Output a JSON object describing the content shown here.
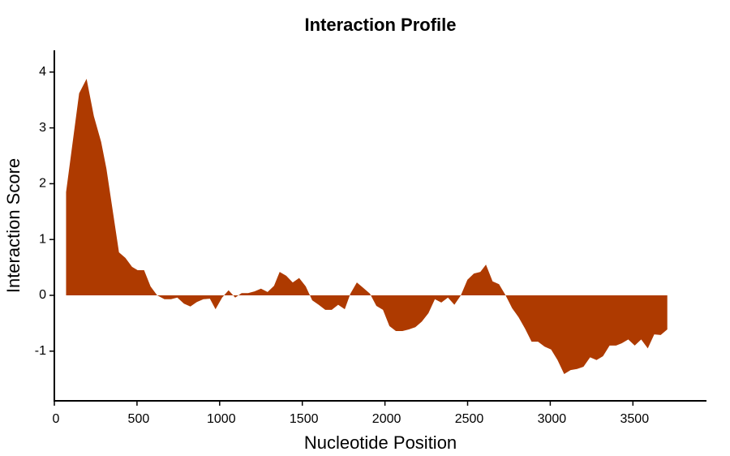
{
  "chart_data": {
    "type": "area",
    "title": "Interaction Profile",
    "x_label": "Nucleotide Position",
    "y_label": "Interaction Score",
    "color": "#ae3a00",
    "x": [
      71,
      150,
      195,
      239,
      283,
      315,
      391,
      430,
      470,
      504,
      543,
      582,
      622,
      666,
      706,
      744,
      784,
      823,
      862,
      902,
      941,
      975,
      1015,
      1054,
      1094,
      1133,
      1172,
      1211,
      1250,
      1290,
      1329,
      1363,
      1403,
      1442,
      1481,
      1521,
      1560,
      1599,
      1639,
      1678,
      1717,
      1757,
      1791,
      1830,
      1870,
      1909,
      1948,
      1988,
      2027,
      2066,
      2106,
      2145,
      2184,
      2223,
      2263,
      2302,
      2341,
      2381,
      2420,
      2459,
      2499,
      2538,
      2577,
      2611,
      2651,
      2690,
      2730,
      2769,
      2808,
      2848,
      2887,
      2926,
      2966,
      3005,
      3044,
      3084,
      3123,
      3162,
      3201,
      3241,
      3280,
      3319,
      3359,
      3398,
      3432,
      3472,
      3511,
      3550,
      3590,
      3629,
      3668,
      3708
    ],
    "values": [
      1.85,
      3.62,
      3.88,
      3.21,
      2.75,
      2.27,
      0.77,
      0.67,
      0.51,
      0.45,
      0.45,
      0.16,
      0.0,
      -0.07,
      -0.07,
      -0.04,
      -0.15,
      -0.2,
      -0.12,
      -0.07,
      -0.06,
      -0.25,
      -0.04,
      0.09,
      -0.04,
      0.04,
      0.04,
      0.07,
      0.12,
      0.06,
      0.17,
      0.42,
      0.35,
      0.23,
      0.31,
      0.16,
      -0.09,
      -0.17,
      -0.26,
      -0.26,
      -0.17,
      -0.25,
      0.03,
      0.23,
      0.13,
      0.03,
      -0.19,
      -0.26,
      -0.55,
      -0.64,
      -0.64,
      -0.61,
      -0.57,
      -0.47,
      -0.32,
      -0.07,
      -0.13,
      -0.04,
      -0.17,
      0.0,
      0.28,
      0.39,
      0.42,
      0.55,
      0.25,
      0.2,
      0.0,
      -0.23,
      -0.39,
      -0.6,
      -0.83,
      -0.83,
      -0.92,
      -0.97,
      -1.16,
      -1.41,
      -1.34,
      -1.32,
      -1.28,
      -1.11,
      -1.16,
      -1.09,
      -0.9,
      -0.9,
      -0.86,
      -0.79,
      -0.9,
      -0.79,
      -0.95,
      -0.7,
      -0.71,
      -0.61
    ],
    "xlim": [
      0,
      3945
    ],
    "ylim": [
      -1.89,
      4.39
    ],
    "xticks": [
      0,
      500,
      1000,
      1500,
      2000,
      2500,
      3000,
      3500
    ],
    "yticks": [
      -1,
      0,
      1,
      2,
      3,
      4
    ]
  }
}
